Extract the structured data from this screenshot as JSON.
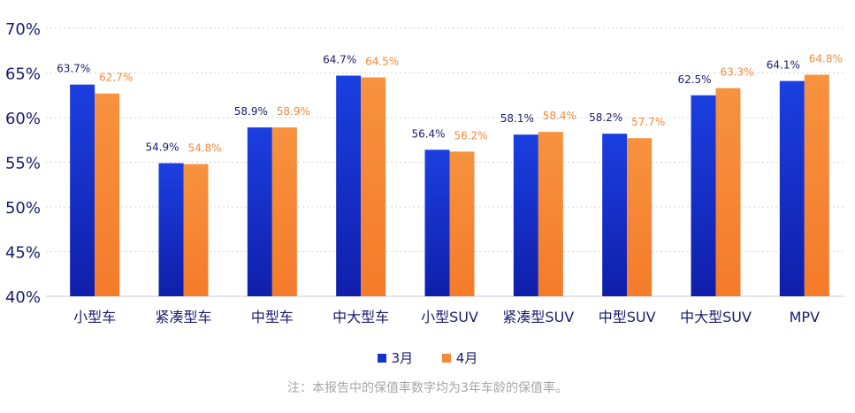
{
  "chart_data": {
    "type": "bar",
    "categories": [
      "小型车",
      "紧凑型车",
      "中型车",
      "中大型车",
      "小型SUV",
      "紧凑型SUV",
      "中型SUV",
      "中大型SUV",
      "MPV"
    ],
    "series": [
      {
        "name": "3月",
        "values": [
          63.7,
          54.9,
          58.9,
          64.7,
          56.4,
          58.1,
          58.2,
          62.5,
          64.1
        ],
        "labels": [
          "63.7%",
          "54.9%",
          "58.9%",
          "64.7%",
          "56.4%",
          "58.1%",
          "58.2%",
          "62.5%",
          "64.1%"
        ],
        "color": "#1530d0"
      },
      {
        "name": "4月",
        "values": [
          62.7,
          54.8,
          58.9,
          64.5,
          56.2,
          58.4,
          57.7,
          63.3,
          64.8
        ],
        "labels": [
          "62.7%",
          "54.8%",
          "58.9%",
          "64.5%",
          "56.2%",
          "58.4%",
          "57.7%",
          "63.3%",
          "64.8%"
        ],
        "color": "#f5893a"
      }
    ],
    "ylim": [
      40,
      70
    ],
    "yticks": [
      40,
      45,
      50,
      55,
      60,
      65,
      70
    ],
    "ytick_labels": [
      "40%",
      "45%",
      "50%",
      "55%",
      "60%",
      "65%",
      "70%"
    ],
    "grid": true,
    "legend_position": "bottom-center"
  },
  "legend": {
    "march": "3月",
    "april": "4月"
  },
  "note": "注：本报告中的保值率数字均为3年车龄的保值率。"
}
